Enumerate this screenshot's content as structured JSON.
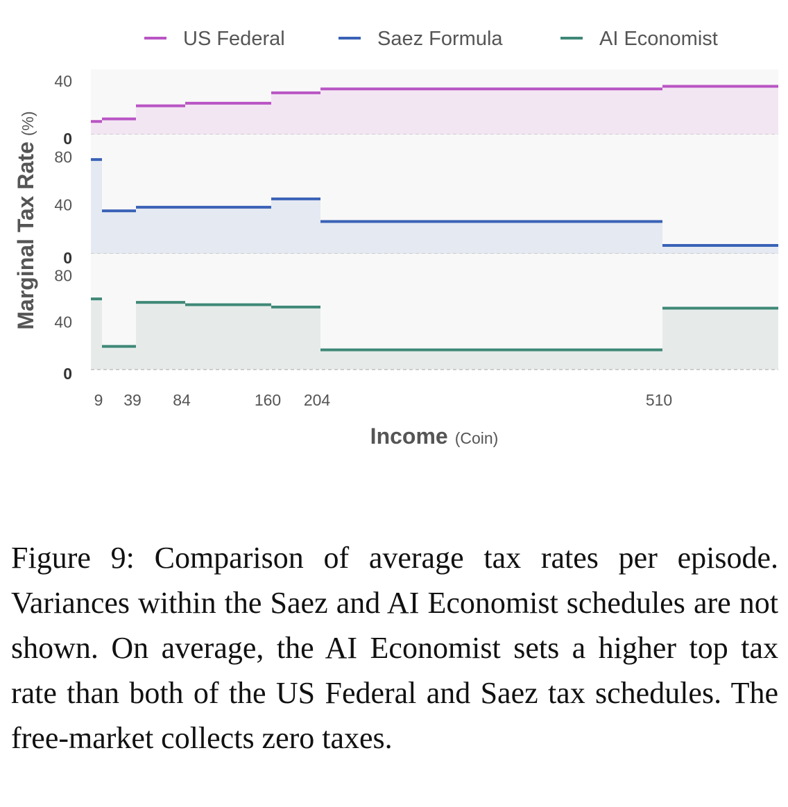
{
  "colors": {
    "us_federal": "#b955c4",
    "saez": "#3a62b6",
    "ai_economist": "#3f8877",
    "us_federal_fill": "#f3e6f3",
    "saez_fill": "#e4e9f2",
    "ai_economist_fill": "#e6ebe9",
    "plot_bg": "#f8f8f8"
  },
  "chart_data": {
    "type": "line",
    "step": "post",
    "xlabel": "Income",
    "xlabel_unit": "(Coin)",
    "ylabel": "Marginal Tax Rate",
    "ylabel_unit": "(%)",
    "x_ticks": [
      9,
      39,
      84,
      160,
      204,
      510
    ],
    "bracket_edges": [
      0,
      9,
      39,
      84,
      160,
      204,
      510,
      612
    ],
    "x_range": [
      0,
      612
    ],
    "legend_position": "top",
    "grid": false,
    "series": [
      {
        "name": "US Federal",
        "ylim": [
          0,
          50
        ],
        "y_ticks": [
          {
            "value": 40,
            "label": "40"
          },
          {
            "value": 0,
            "label": "0"
          }
        ],
        "values": [
          10,
          12,
          22,
          24,
          32,
          35,
          37
        ]
      },
      {
        "name": "Saez Formula",
        "ylim": [
          0,
          100
        ],
        "y_ticks": [
          {
            "value": 80,
            "label": "80"
          },
          {
            "value": 40,
            "label": "40"
          },
          {
            "value": 0,
            "label": "0"
          }
        ],
        "values": [
          79,
          36,
          39,
          39,
          46,
          27,
          7
        ]
      },
      {
        "name": "AI Economist",
        "ylim": [
          0,
          100
        ],
        "y_ticks": [
          {
            "value": 80,
            "label": "80"
          },
          {
            "value": 40,
            "label": "40"
          },
          {
            "value": 0,
            "label": "0"
          }
        ],
        "values": [
          61,
          20,
          58,
          56,
          54,
          17,
          53
        ]
      }
    ]
  },
  "caption": {
    "text": "Figure 9:  Comparison of average tax rates per episode. Variances within the Saez and AI Economist schedules are not shown.  On average, the AI Economist sets a higher top tax rate than both of the US Federal and Saez tax schedules. The free-market collects zero taxes."
  }
}
